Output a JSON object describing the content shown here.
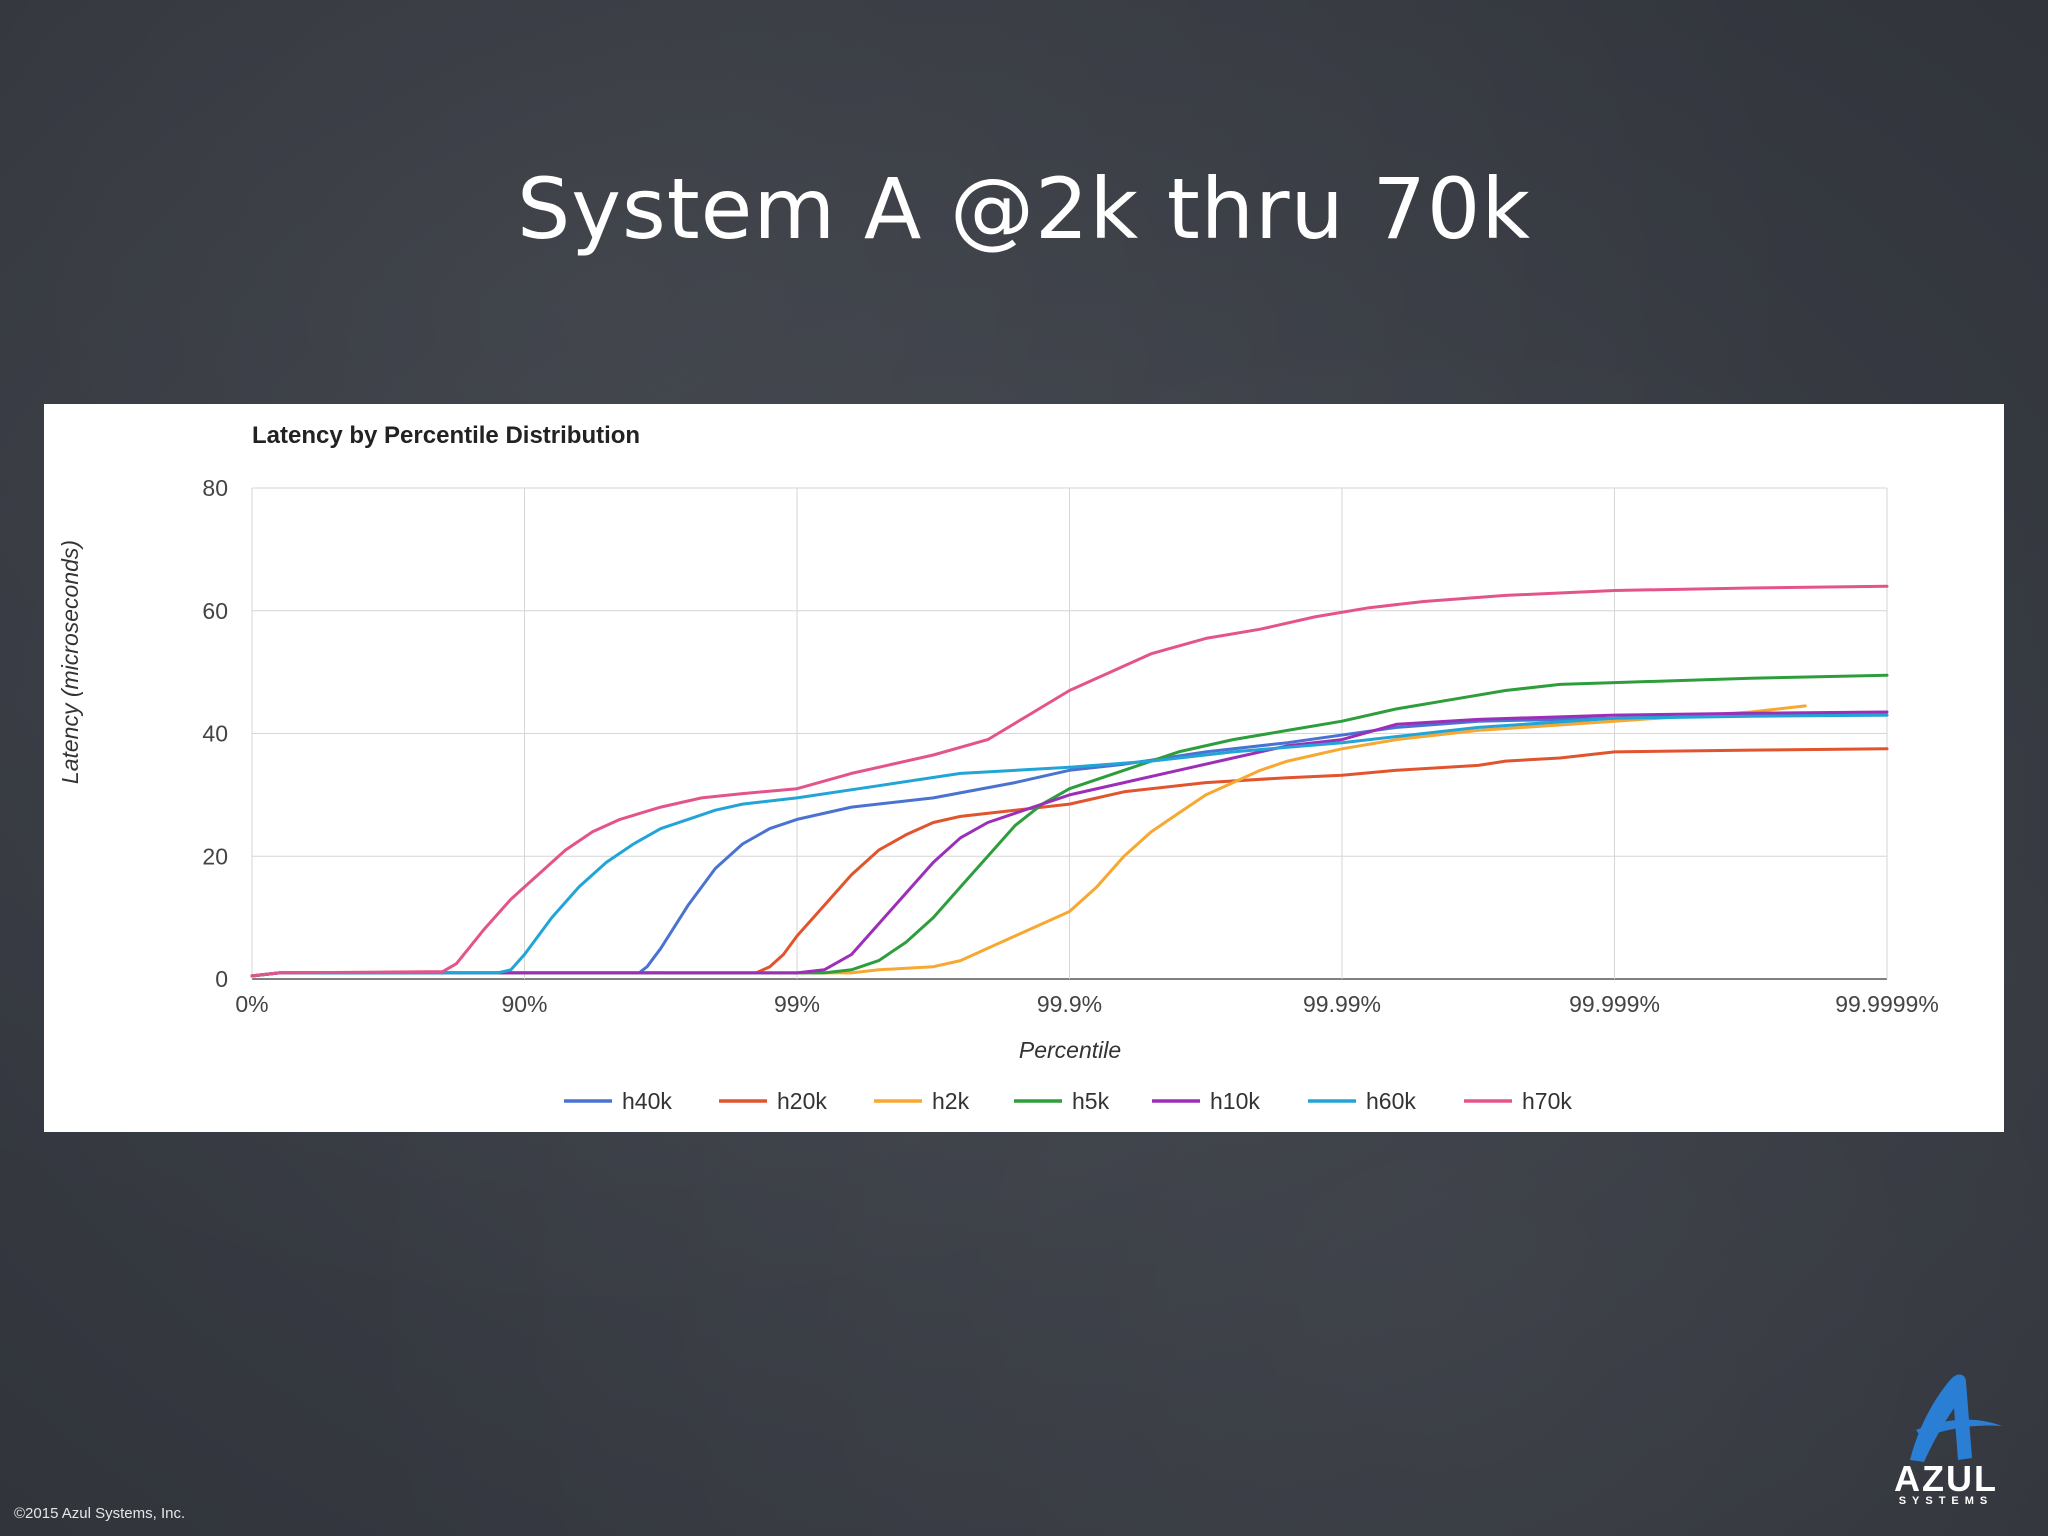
{
  "slide": {
    "title": "System A @2k thru 70k",
    "copyright": "©2015 Azul Systems, Inc.",
    "logo": {
      "name": "AZUL",
      "sub": "SYSTEMS"
    }
  },
  "chart_data": {
    "type": "line",
    "title": "Latency by Percentile Distribution",
    "xlabel": "Percentile",
    "ylabel": "Latency (microseconds)",
    "x_scale": "log-nines",
    "xlim": [
      0,
      6
    ],
    "ylim": [
      0,
      80
    ],
    "x_tick_labels": [
      "0%",
      "90%",
      "99%",
      "99.9%",
      "99.99%",
      "99.999%",
      "99.9999%"
    ],
    "y_ticks": [
      0,
      20,
      40,
      60,
      80
    ],
    "grid": true,
    "legend_position": "bottom",
    "series": [
      {
        "name": "h40k",
        "color": "#4a72d0",
        "points": [
          [
            0,
            0.5
          ],
          [
            0.1,
            1
          ],
          [
            1.5,
            1
          ],
          [
            1.4,
            1
          ],
          [
            1.42,
            1
          ],
          [
            1.45,
            2
          ],
          [
            1.5,
            5
          ],
          [
            1.6,
            12
          ],
          [
            1.7,
            18
          ],
          [
            1.8,
            22
          ],
          [
            1.9,
            24.5
          ],
          [
            2.0,
            26
          ],
          [
            2.2,
            28
          ],
          [
            2.5,
            29.5
          ],
          [
            2.8,
            32
          ],
          [
            3.0,
            34
          ],
          [
            3.2,
            35
          ],
          [
            3.5,
            37
          ],
          [
            3.8,
            38.5
          ],
          [
            4.2,
            41
          ],
          [
            4.5,
            42
          ],
          [
            5.0,
            42.5
          ],
          [
            5.5,
            43
          ],
          [
            6.0,
            43
          ]
        ]
      },
      {
        "name": "h20k",
        "color": "#e0542e",
        "points": [
          [
            0,
            0.5
          ],
          [
            0.1,
            1
          ],
          [
            1.85,
            1
          ],
          [
            1.9,
            2
          ],
          [
            1.95,
            4
          ],
          [
            2.0,
            7
          ],
          [
            2.1,
            12
          ],
          [
            2.2,
            17
          ],
          [
            2.3,
            21
          ],
          [
            2.4,
            23.5
          ],
          [
            2.5,
            25.5
          ],
          [
            2.6,
            26.5
          ],
          [
            2.8,
            27.5
          ],
          [
            3.0,
            28.5
          ],
          [
            3.2,
            30.5
          ],
          [
            3.5,
            32
          ],
          [
            3.8,
            32.8
          ],
          [
            4.0,
            33.2
          ],
          [
            4.2,
            34
          ],
          [
            4.5,
            34.8
          ],
          [
            4.6,
            35.5
          ],
          [
            4.8,
            36
          ],
          [
            5.0,
            37
          ],
          [
            5.5,
            37.3
          ],
          [
            6.0,
            37.5
          ]
        ]
      },
      {
        "name": "h2k",
        "color": "#f7a830",
        "points": [
          [
            0,
            0.5
          ],
          [
            0.1,
            1
          ],
          [
            2.2,
            1
          ],
          [
            2.3,
            1.5
          ],
          [
            2.5,
            2
          ],
          [
            2.6,
            3
          ],
          [
            2.7,
            5
          ],
          [
            2.8,
            7
          ],
          [
            2.9,
            9
          ],
          [
            3.0,
            11
          ],
          [
            3.1,
            15
          ],
          [
            3.2,
            20
          ],
          [
            3.3,
            24
          ],
          [
            3.4,
            27
          ],
          [
            3.5,
            30
          ],
          [
            3.6,
            32
          ],
          [
            3.7,
            34
          ],
          [
            3.8,
            35.5
          ],
          [
            4.0,
            37.5
          ],
          [
            4.2,
            39
          ],
          [
            4.5,
            40.5
          ],
          [
            5.0,
            42
          ],
          [
            5.5,
            43.5
          ],
          [
            5.7,
            44.5
          ]
        ]
      },
      {
        "name": "h5k",
        "color": "#2e9e3c",
        "points": [
          [
            0,
            0.5
          ],
          [
            0.1,
            1
          ],
          [
            2.1,
            1
          ],
          [
            2.2,
            1.5
          ],
          [
            2.3,
            3
          ],
          [
            2.4,
            6
          ],
          [
            2.5,
            10
          ],
          [
            2.6,
            15
          ],
          [
            2.7,
            20
          ],
          [
            2.8,
            25
          ],
          [
            2.9,
            28.5
          ],
          [
            3.0,
            31
          ],
          [
            3.2,
            34
          ],
          [
            3.4,
            37
          ],
          [
            3.6,
            39
          ],
          [
            3.8,
            40.5
          ],
          [
            4.0,
            42
          ],
          [
            4.2,
            44
          ],
          [
            4.4,
            45.5
          ],
          [
            4.6,
            47
          ],
          [
            4.8,
            48
          ],
          [
            5.0,
            48.3
          ],
          [
            5.5,
            49
          ],
          [
            6.0,
            49.5
          ]
        ]
      },
      {
        "name": "h10k",
        "color": "#9b2fb8",
        "points": [
          [
            0,
            0.5
          ],
          [
            0.1,
            1
          ],
          [
            2.0,
            1
          ],
          [
            2.1,
            1.5
          ],
          [
            2.2,
            4
          ],
          [
            2.3,
            9
          ],
          [
            2.4,
            14
          ],
          [
            2.5,
            19
          ],
          [
            2.6,
            23
          ],
          [
            2.7,
            25.5
          ],
          [
            2.8,
            27
          ],
          [
            2.9,
            28.5
          ],
          [
            3.0,
            30
          ],
          [
            3.2,
            32
          ],
          [
            3.4,
            34
          ],
          [
            3.6,
            36
          ],
          [
            3.8,
            38
          ],
          [
            4.0,
            39
          ],
          [
            4.2,
            41.5
          ],
          [
            4.5,
            42.3
          ],
          [
            5.0,
            43
          ],
          [
            5.5,
            43.3
          ],
          [
            6.0,
            43.5
          ]
        ]
      },
      {
        "name": "h60k",
        "color": "#22a5d6",
        "points": [
          [
            0,
            0.5
          ],
          [
            0.1,
            1
          ],
          [
            0.9,
            1
          ],
          [
            0.95,
            1.5
          ],
          [
            1.0,
            4
          ],
          [
            1.1,
            10
          ],
          [
            1.2,
            15
          ],
          [
            1.3,
            19
          ],
          [
            1.4,
            22
          ],
          [
            1.5,
            24.5
          ],
          [
            1.6,
            26
          ],
          [
            1.7,
            27.5
          ],
          [
            1.8,
            28.5
          ],
          [
            2.0,
            29.5
          ],
          [
            2.3,
            31.5
          ],
          [
            2.6,
            33.5
          ],
          [
            3.0,
            34.5
          ],
          [
            3.3,
            35.5
          ],
          [
            3.6,
            37
          ],
          [
            4.0,
            38.5
          ],
          [
            4.5,
            41
          ],
          [
            5.0,
            42.5
          ],
          [
            5.5,
            42.8
          ],
          [
            6.0,
            43
          ]
        ]
      },
      {
        "name": "h70k",
        "color": "#e2548a",
        "points": [
          [
            0,
            0.5
          ],
          [
            0.1,
            1
          ],
          [
            0.7,
            1.2
          ],
          [
            0.75,
            2.5
          ],
          [
            0.85,
            8
          ],
          [
            0.95,
            13
          ],
          [
            1.05,
            17
          ],
          [
            1.15,
            21
          ],
          [
            1.25,
            24
          ],
          [
            1.35,
            26
          ],
          [
            1.5,
            28
          ],
          [
            1.65,
            29.5
          ],
          [
            1.8,
            30.2
          ],
          [
            2.0,
            31
          ],
          [
            2.2,
            33.5
          ],
          [
            2.5,
            36.5
          ],
          [
            2.7,
            39
          ],
          [
            2.85,
            43
          ],
          [
            3.0,
            47
          ],
          [
            3.15,
            50
          ],
          [
            3.3,
            53
          ],
          [
            3.5,
            55.5
          ],
          [
            3.7,
            57
          ],
          [
            3.9,
            59
          ],
          [
            4.1,
            60.5
          ],
          [
            4.3,
            61.5
          ],
          [
            4.6,
            62.5
          ],
          [
            5.0,
            63.3
          ],
          [
            5.5,
            63.7
          ],
          [
            6.0,
            64
          ]
        ]
      }
    ]
  }
}
